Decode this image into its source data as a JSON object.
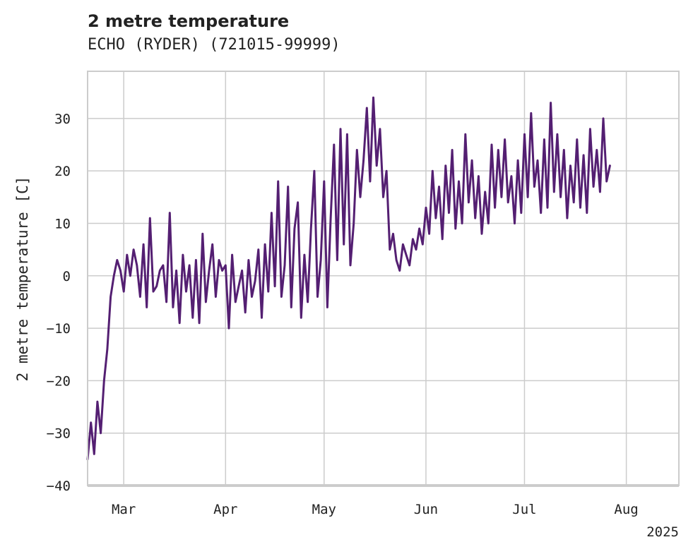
{
  "chart_data": {
    "type": "line",
    "title": "2 metre temperature",
    "subtitle": "ECHO (RYDER) (721015-99999)",
    "xlabel": "",
    "ylabel": "2 metre temperature [C]",
    "x_tick_labels": [
      "Mar",
      "Apr",
      "May",
      "Jun",
      "Jul",
      "Aug"
    ],
    "x_ticks": [
      "2025-03-01",
      "2025-04-01",
      "2025-05-01",
      "2025-06-01",
      "2025-07-01",
      "2025-08-01"
    ],
    "x_offset_label": "2025",
    "xlim": [
      "2025-02-18",
      "2025-08-17"
    ],
    "ylim": [
      -40,
      39
    ],
    "y_ticks": [
      -40,
      -30,
      -20,
      -10,
      0,
      10,
      20,
      30
    ],
    "y_tick_labels": [
      "−40",
      "−30",
      "−20",
      "−10",
      "0",
      "10",
      "20",
      "30"
    ],
    "grid": true,
    "legend": "none",
    "line_color": "#541f72",
    "series": [
      {
        "x": [
          "2025-02-18",
          "2025-02-19",
          "2025-02-20",
          "2025-02-21",
          "2025-02-22",
          "2025-02-23",
          "2025-02-24",
          "2025-02-25",
          "2025-02-26",
          "2025-02-27",
          "2025-02-28",
          "2025-03-01",
          "2025-03-02",
          "2025-03-03",
          "2025-03-04",
          "2025-03-05",
          "2025-03-06",
          "2025-03-07",
          "2025-03-08",
          "2025-03-09",
          "2025-03-10",
          "2025-03-11",
          "2025-03-12",
          "2025-03-13",
          "2025-03-14",
          "2025-03-15",
          "2025-03-16",
          "2025-03-17",
          "2025-03-18",
          "2025-03-19",
          "2025-03-20",
          "2025-03-21",
          "2025-03-22",
          "2025-03-23",
          "2025-03-24",
          "2025-03-25",
          "2025-03-26",
          "2025-03-27",
          "2025-03-28",
          "2025-03-29",
          "2025-03-30",
          "2025-03-31",
          "2025-04-01",
          "2025-04-02",
          "2025-04-03",
          "2025-04-04",
          "2025-04-05",
          "2025-04-06",
          "2025-04-07",
          "2025-04-08",
          "2025-04-09",
          "2025-04-10",
          "2025-04-11",
          "2025-04-12",
          "2025-04-13",
          "2025-04-14",
          "2025-04-15",
          "2025-04-16",
          "2025-04-17",
          "2025-04-18",
          "2025-04-19",
          "2025-04-20",
          "2025-04-21",
          "2025-04-22",
          "2025-04-23",
          "2025-04-24",
          "2025-04-25",
          "2025-04-26",
          "2025-04-27",
          "2025-04-28",
          "2025-04-29",
          "2025-04-30",
          "2025-05-01",
          "2025-05-02",
          "2025-05-03",
          "2025-05-04",
          "2025-05-05",
          "2025-05-06",
          "2025-05-07",
          "2025-05-08",
          "2025-05-09",
          "2025-05-10",
          "2025-05-11",
          "2025-05-12",
          "2025-05-13",
          "2025-05-14",
          "2025-05-15",
          "2025-05-16",
          "2025-05-17",
          "2025-05-18",
          "2025-05-19",
          "2025-05-20",
          "2025-05-21",
          "2025-05-22",
          "2025-05-23",
          "2025-05-24",
          "2025-05-25",
          "2025-05-26",
          "2025-05-27",
          "2025-05-28",
          "2025-05-29",
          "2025-05-30",
          "2025-05-31",
          "2025-06-01",
          "2025-06-02",
          "2025-06-03",
          "2025-06-04",
          "2025-06-05",
          "2025-06-06",
          "2025-06-07",
          "2025-06-08",
          "2025-06-09",
          "2025-06-10",
          "2025-06-11",
          "2025-06-12",
          "2025-06-13",
          "2025-06-14",
          "2025-06-15",
          "2025-06-16",
          "2025-06-17",
          "2025-06-18",
          "2025-06-19",
          "2025-06-20",
          "2025-06-21",
          "2025-06-22",
          "2025-06-23",
          "2025-06-24",
          "2025-06-25",
          "2025-06-26",
          "2025-06-27",
          "2025-06-28",
          "2025-06-29",
          "2025-06-30",
          "2025-07-01",
          "2025-07-02",
          "2025-07-03",
          "2025-07-04",
          "2025-07-05",
          "2025-07-06",
          "2025-07-07",
          "2025-07-08",
          "2025-07-09",
          "2025-07-10",
          "2025-07-11",
          "2025-07-12",
          "2025-07-13",
          "2025-07-14",
          "2025-07-15",
          "2025-07-16",
          "2025-07-17",
          "2025-07-18",
          "2025-07-19",
          "2025-07-20",
          "2025-07-21",
          "2025-07-22",
          "2025-07-23",
          "2025-07-24",
          "2025-07-25",
          "2025-07-26",
          "2025-07-27"
        ],
        "y": [
          -35,
          -28,
          -34,
          -24,
          -30,
          -20,
          -14,
          -4,
          0,
          3,
          1,
          -3,
          4,
          0,
          5,
          2,
          -4,
          6,
          -6,
          11,
          -3,
          -2,
          1,
          2,
          -5,
          12,
          -6,
          1,
          -9,
          4,
          -3,
          2,
          -8,
          3,
          -9,
          8,
          -5,
          1,
          6,
          -4,
          3,
          1,
          2,
          -10,
          4,
          -5,
          -2,
          1,
          -7,
          3,
          -4,
          -1,
          5,
          -8,
          6,
          -3,
          12,
          -2,
          18,
          -4,
          2,
          17,
          -6,
          9,
          14,
          -8,
          4,
          -5,
          9,
          20,
          -4,
          3,
          18,
          -6,
          11,
          25,
          3,
          28,
          6,
          27,
          2,
          10,
          24,
          15,
          22,
          32,
          18,
          34,
          21,
          28,
          15,
          20,
          5,
          8,
          3,
          1,
          6,
          4,
          2,
          7,
          5,
          9,
          6,
          13,
          8,
          20,
          11,
          17,
          7,
          21,
          12,
          24,
          9,
          18,
          10,
          27,
          14,
          22,
          11,
          19,
          8,
          16,
          10,
          25,
          13,
          24,
          15,
          26,
          14,
          19,
          10,
          22,
          12,
          27,
          15,
          31,
          17,
          22,
          12,
          26,
          13,
          33,
          16,
          27,
          15,
          24,
          11,
          21,
          14,
          26,
          13,
          23,
          12,
          28,
          17,
          24,
          16,
          30,
          18,
          21
        ]
      }
    ]
  }
}
